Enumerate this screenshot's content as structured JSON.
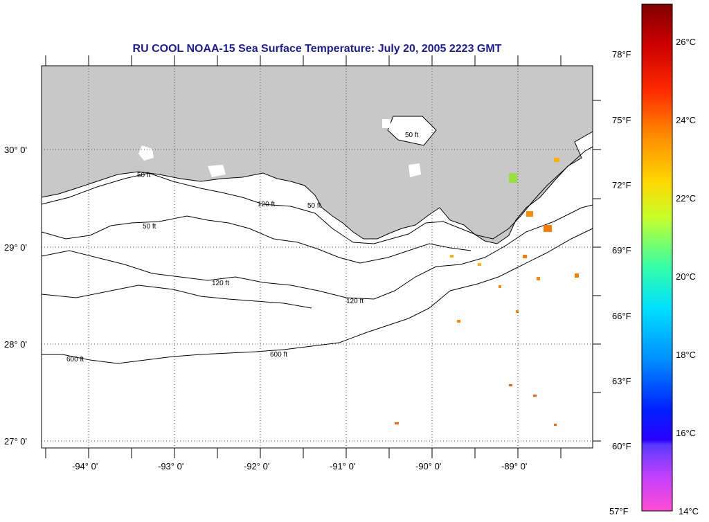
{
  "title": "RU COOL  NOAA-15  Sea Surface Temperature:  July 20, 2005 2223 GMT",
  "lat_labels": [
    "30° 0'",
    "29° 0'",
    "28° 0'",
    "27° 0'"
  ],
  "lon_labels": [
    "-94° 0'",
    "-93° 0'",
    "-92° 0'",
    "-91° 0'",
    "-90° 0'",
    "-89° 0'"
  ],
  "contour_labels": {
    "c50": "50 ft",
    "c120": "120 ft",
    "c600": "600 ft"
  },
  "colorbar": {
    "fahrenheit": [
      "78°F",
      "75°F",
      "72°F",
      "69°F",
      "66°F",
      "63°F",
      "60°F",
      "57°F"
    ],
    "celsius": [
      "26°C",
      "24°C",
      "22°C",
      "20°C",
      "18°C",
      "16°C",
      "14°C"
    ]
  },
  "colors": {
    "land": "#c8c8c8",
    "title": "#1a1aa0",
    "sst_warm": "#ff8c00"
  }
}
